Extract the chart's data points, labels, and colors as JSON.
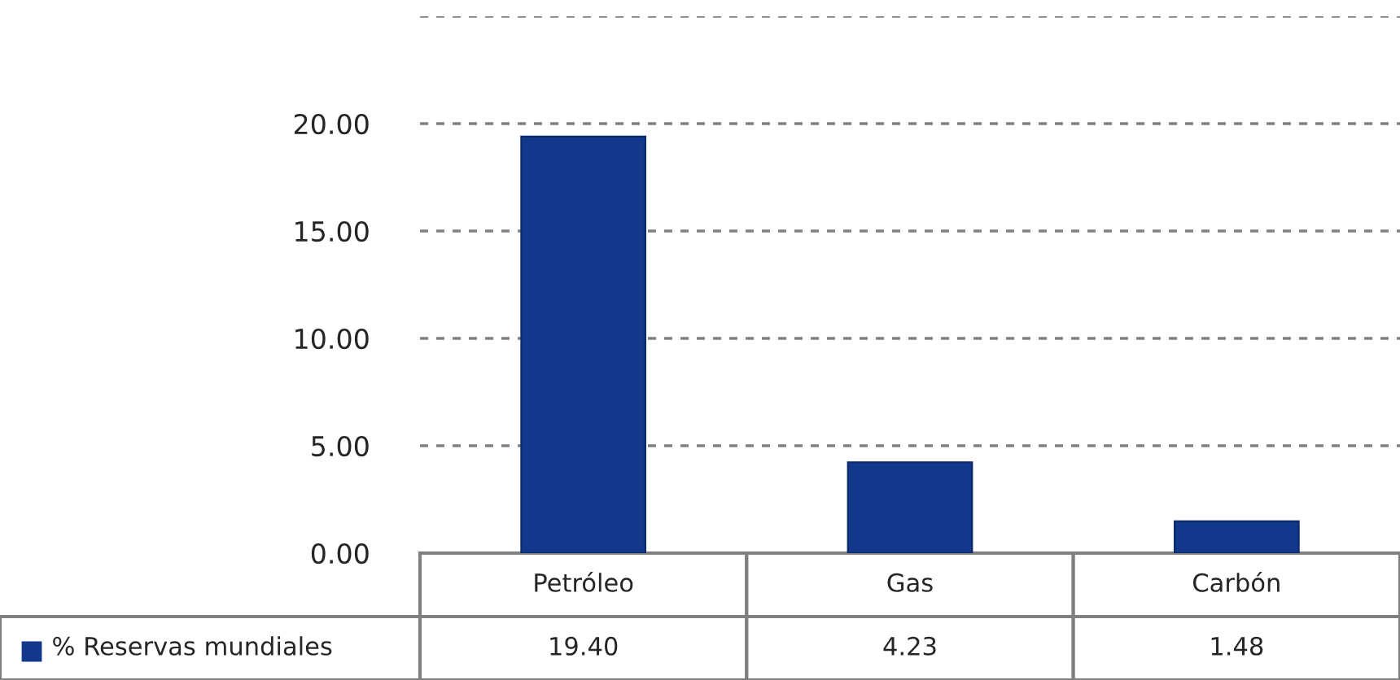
{
  "chart_data": {
    "type": "bar",
    "categories": [
      "Petróleo",
      "Gas",
      "Carbón"
    ],
    "series": [
      {
        "name": "% Reservas mundiales",
        "color": "#11388a",
        "values": [
          19.4,
          4.23,
          1.48
        ],
        "value_labels": [
          "19.40",
          "4.23",
          "1.48"
        ]
      }
    ],
    "ylim": [
      0,
      25
    ],
    "yticks": [
      {
        "value": 0,
        "label": "0.00"
      },
      {
        "value": 5,
        "label": "5.00"
      },
      {
        "value": 10,
        "label": "10.00"
      },
      {
        "value": 15,
        "label": "15.00"
      },
      {
        "value": 20,
        "label": "20.00"
      },
      {
        "value": 25,
        "label": null
      }
    ],
    "grid": "y",
    "legend": "bottom left"
  }
}
